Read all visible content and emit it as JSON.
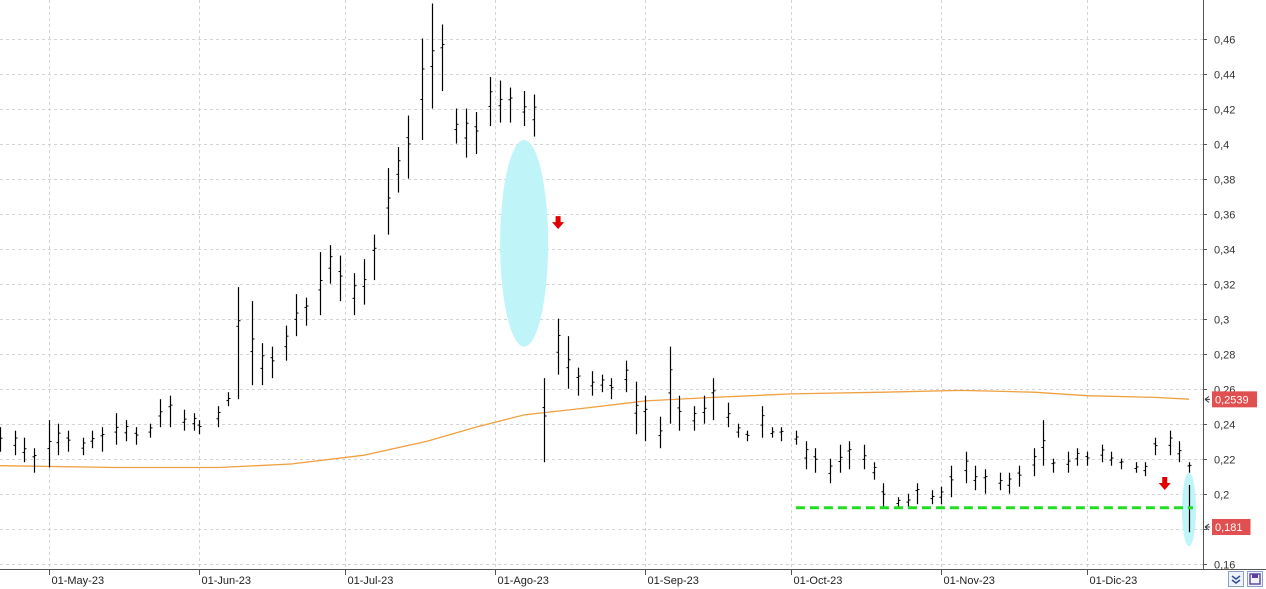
{
  "chart_data": {
    "type": "bar",
    "subtype": "ohlc",
    "xlim": [
      "2023-04-21",
      "2023-12-22"
    ],
    "ylim": [
      0.157,
      0.482
    ],
    "y_ticks": [
      "0,16",
      "0,18",
      "0,2",
      "0,22",
      "0,24",
      "0,26",
      "0,28",
      "0,3",
      "0,32",
      "0,34",
      "0,36",
      "0,38",
      "0,4",
      "0,42",
      "0,44",
      "0,46"
    ],
    "x_ticks": [
      {
        "date": "2023-05-01",
        "label": "01-May-23"
      },
      {
        "date": "2023-06-01",
        "label": "01-Jun-23"
      },
      {
        "date": "2023-07-01",
        "label": "01-Jul-23"
      },
      {
        "date": "2023-08-01",
        "label": "01-Ago-23"
      },
      {
        "date": "2023-09-01",
        "label": "01-Sep-23"
      },
      {
        "date": "2023-10-01",
        "label": "01-Oct-23"
      },
      {
        "date": "2023-11-01",
        "label": "01-Nov-23"
      },
      {
        "date": "2023-12-01",
        "label": "01-Dic-23"
      }
    ],
    "grid": true,
    "price_bars": [
      [
        "2023-04-21",
        0.238,
        0.224
      ],
      [
        "2023-04-24",
        0.236,
        0.222
      ],
      [
        "2023-04-26",
        0.232,
        0.218
      ],
      [
        "2023-04-28",
        0.226,
        0.212
      ],
      [
        "2023-05-01",
        0.242,
        0.215
      ],
      [
        "2023-05-03",
        0.24,
        0.222
      ],
      [
        "2023-05-05",
        0.236,
        0.224
      ],
      [
        "2023-05-08",
        0.232,
        0.222
      ],
      [
        "2023-05-10",
        0.236,
        0.226
      ],
      [
        "2023-05-12",
        0.238,
        0.224
      ],
      [
        "2023-05-15",
        0.246,
        0.228
      ],
      [
        "2023-05-17",
        0.242,
        0.23
      ],
      [
        "2023-05-19",
        0.238,
        0.228
      ],
      [
        "2023-05-22",
        0.24,
        0.232
      ],
      [
        "2023-05-24",
        0.254,
        0.238
      ],
      [
        "2023-05-26",
        0.256,
        0.238
      ],
      [
        "2023-05-29",
        0.248,
        0.236
      ],
      [
        "2023-05-31",
        0.246,
        0.236
      ],
      [
        "2023-06-01",
        0.242,
        0.234
      ],
      [
        "2023-06-05",
        0.25,
        0.238
      ],
      [
        "2023-06-07",
        0.258,
        0.25
      ],
      [
        "2023-06-09",
        0.318,
        0.254
      ],
      [
        "2023-06-12",
        0.31,
        0.262
      ],
      [
        "2023-06-14",
        0.286,
        0.262
      ],
      [
        "2023-06-16",
        0.284,
        0.266
      ],
      [
        "2023-06-19",
        0.296,
        0.276
      ],
      [
        "2023-06-21",
        0.314,
        0.29
      ],
      [
        "2023-06-23",
        0.312,
        0.296
      ],
      [
        "2023-06-26",
        0.338,
        0.302
      ],
      [
        "2023-06-28",
        0.342,
        0.32
      ],
      [
        "2023-06-30",
        0.336,
        0.31
      ],
      [
        "2023-07-03",
        0.326,
        0.302
      ],
      [
        "2023-07-05",
        0.334,
        0.308
      ],
      [
        "2023-07-07",
        0.348,
        0.322
      ],
      [
        "2023-07-10",
        0.386,
        0.348
      ],
      [
        "2023-07-12",
        0.398,
        0.372
      ],
      [
        "2023-07-14",
        0.416,
        0.38
      ],
      [
        "2023-07-17",
        0.46,
        0.402
      ],
      [
        "2023-07-19",
        0.48,
        0.42
      ],
      [
        "2023-07-21",
        0.468,
        0.43
      ],
      [
        "2023-07-24",
        0.42,
        0.4
      ],
      [
        "2023-07-26",
        0.42,
        0.392
      ],
      [
        "2023-07-28",
        0.418,
        0.394
      ],
      [
        "2023-07-31",
        0.438,
        0.41
      ],
      [
        "2023-08-02",
        0.436,
        0.412
      ],
      [
        "2023-08-04",
        0.432,
        0.412
      ],
      [
        "2023-08-07",
        0.43,
        0.41
      ],
      [
        "2023-08-09",
        0.428,
        0.404
      ],
      [
        "2023-08-11",
        0.266,
        0.218
      ],
      [
        "2023-08-14",
        0.3,
        0.268
      ],
      [
        "2023-08-16",
        0.29,
        0.26
      ],
      [
        "2023-08-18",
        0.272,
        0.256
      ],
      [
        "2023-08-21",
        0.27,
        0.256
      ],
      [
        "2023-08-23",
        0.268,
        0.258
      ],
      [
        "2023-08-25",
        0.266,
        0.254
      ],
      [
        "2023-08-28",
        0.276,
        0.258
      ],
      [
        "2023-08-30",
        0.264,
        0.234
      ],
      [
        "2023-09-01",
        0.256,
        0.23
      ],
      [
        "2023-09-04",
        0.244,
        0.226
      ],
      [
        "2023-09-06",
        0.284,
        0.24
      ],
      [
        "2023-09-08",
        0.256,
        0.236
      ],
      [
        "2023-09-11",
        0.25,
        0.236
      ],
      [
        "2023-09-13",
        0.256,
        0.24
      ],
      [
        "2023-09-15",
        0.266,
        0.242
      ],
      [
        "2023-09-18",
        0.252,
        0.238
      ],
      [
        "2023-09-20",
        0.24,
        0.232
      ],
      [
        "2023-09-22",
        0.236,
        0.23
      ],
      [
        "2023-09-25",
        0.25,
        0.232
      ],
      [
        "2023-09-27",
        0.238,
        0.232
      ],
      [
        "2023-09-29",
        0.238,
        0.23
      ],
      [
        "2023-10-02",
        0.236,
        0.228
      ],
      [
        "2023-10-04",
        0.23,
        0.214
      ],
      [
        "2023-10-06",
        0.226,
        0.212
      ],
      [
        "2023-10-09",
        0.22,
        0.206
      ],
      [
        "2023-10-11",
        0.228,
        0.212
      ],
      [
        "2023-10-13",
        0.23,
        0.214
      ],
      [
        "2023-10-16",
        0.228,
        0.214
      ],
      [
        "2023-10-18",
        0.218,
        0.208
      ],
      [
        "2023-10-20",
        0.206,
        0.192
      ],
      [
        "2023-10-23",
        0.198,
        0.192
      ],
      [
        "2023-10-25",
        0.2,
        0.192
      ],
      [
        "2023-10-27",
        0.206,
        0.194
      ],
      [
        "2023-10-30",
        0.202,
        0.194
      ],
      [
        "2023-11-01",
        0.204,
        0.194
      ],
      [
        "2023-11-03",
        0.216,
        0.198
      ],
      [
        "2023-11-06",
        0.224,
        0.206
      ],
      [
        "2023-11-08",
        0.216,
        0.202
      ],
      [
        "2023-11-10",
        0.214,
        0.2
      ],
      [
        "2023-11-13",
        0.212,
        0.202
      ],
      [
        "2023-11-15",
        0.212,
        0.2
      ],
      [
        "2023-11-17",
        0.216,
        0.204
      ],
      [
        "2023-11-20",
        0.226,
        0.21
      ],
      [
        "2023-11-22",
        0.242,
        0.216
      ],
      [
        "2023-11-24",
        0.22,
        0.212
      ],
      [
        "2023-11-27",
        0.224,
        0.212
      ],
      [
        "2023-11-29",
        0.226,
        0.216
      ],
      [
        "2023-12-01",
        0.224,
        0.216
      ],
      [
        "2023-12-04",
        0.228,
        0.218
      ],
      [
        "2023-12-06",
        0.224,
        0.216
      ],
      [
        "2023-12-08",
        0.22,
        0.214
      ],
      [
        "2023-12-11",
        0.218,
        0.212
      ],
      [
        "2023-12-13",
        0.218,
        0.21
      ],
      [
        "2023-12-15",
        0.232,
        0.222
      ],
      [
        "2023-12-18",
        0.236,
        0.222
      ],
      [
        "2023-12-20",
        0.23,
        0.218
      ],
      [
        "2023-12-22",
        0.218,
        0.212
      ]
    ],
    "last_bar": [
      "2023-12-22",
      0.205,
      0.178
    ],
    "moving_average": [
      [
        "2023-04-21",
        0.216
      ],
      [
        "2023-05-15",
        0.215
      ],
      [
        "2023-06-05",
        0.215
      ],
      [
        "2023-06-20",
        0.217
      ],
      [
        "2023-07-05",
        0.222
      ],
      [
        "2023-07-18",
        0.23
      ],
      [
        "2023-07-28",
        0.238
      ],
      [
        "2023-08-07",
        0.245
      ],
      [
        "2023-08-20",
        0.249
      ],
      [
        "2023-09-01",
        0.253
      ],
      [
        "2023-09-15",
        0.255
      ],
      [
        "2023-10-01",
        0.257
      ],
      [
        "2023-10-20",
        0.258
      ],
      [
        "2023-11-05",
        0.259
      ],
      [
        "2023-11-20",
        0.258
      ],
      [
        "2023-12-01",
        0.256
      ],
      [
        "2023-12-15",
        0.255
      ],
      [
        "2023-12-22",
        0.254
      ]
    ],
    "support_level": {
      "value": 0.192,
      "from": "2023-10-02",
      "to": "2023-12-22"
    },
    "price_tags": [
      {
        "value": 0.2539,
        "label": "0,2539"
      },
      {
        "value": 0.181,
        "label": "0,181"
      }
    ],
    "markers": [
      {
        "type": "down-arrow",
        "date": "2023-08-14",
        "value": 0.354
      },
      {
        "type": "down-arrow",
        "date": "2023-12-17",
        "value": 0.205
      }
    ],
    "highlights": [
      {
        "date": "2023-08-07",
        "value_low": 0.284,
        "value_high": 0.402
      },
      {
        "date": "2023-12-22",
        "value_low": 0.17,
        "value_high": 0.212
      }
    ],
    "colors": {
      "bars": "#000000",
      "moving_average": "#f0a040",
      "support_level": "#22dd22",
      "price_tag": "#e05050",
      "markers": "#e00000",
      "highlight": "#bff4f8",
      "grid": "#d4d4d4"
    }
  },
  "toolbar": {
    "zoom_icon": "zoom-icon",
    "save_icon": "save-icon"
  }
}
